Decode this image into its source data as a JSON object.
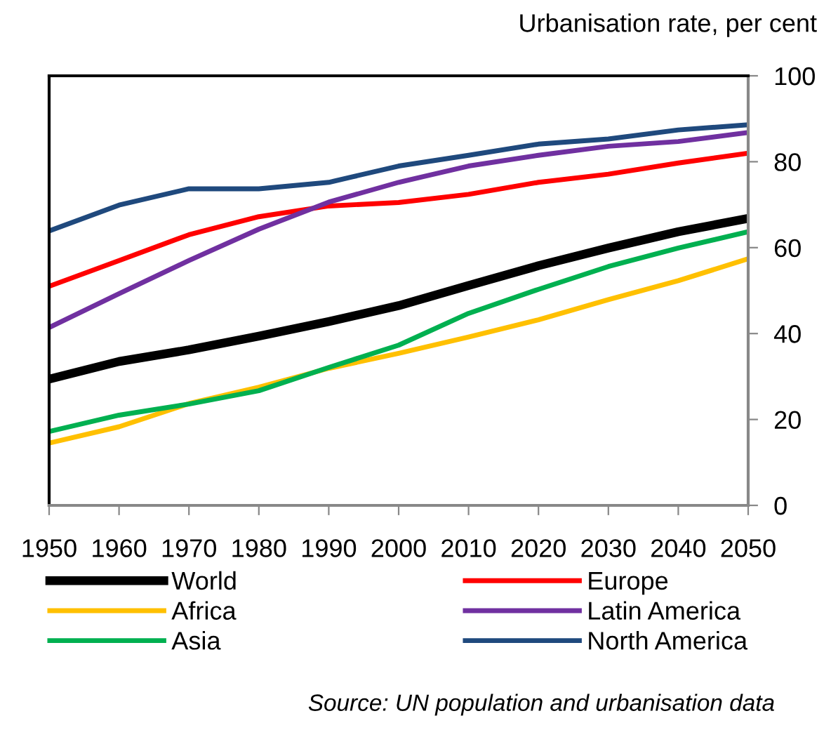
{
  "chart_data": {
    "type": "line",
    "ylabel": "Urbanisation rate, per cent",
    "x": [
      1950,
      1960,
      1970,
      1980,
      1990,
      2000,
      2010,
      2020,
      2030,
      2040,
      2050
    ],
    "xlim": [
      1950,
      2050
    ],
    "xticks": [
      1950,
      1960,
      1970,
      1980,
      1990,
      2000,
      2010,
      2020,
      2030,
      2040,
      2050
    ],
    "ylim": [
      0,
      100
    ],
    "yticks": [
      0,
      20,
      40,
      60,
      80,
      100
    ],
    "grid": false,
    "legend": "bottom",
    "marker": "none",
    "line_style": "solid",
    "series": [
      {
        "name": "World",
        "color": "#000000",
        "values": [
          29.4,
          33.5,
          36.2,
          39.4,
          42.8,
          46.5,
          51.2,
          55.8,
          59.9,
          63.7,
          66.8
        ]
      },
      {
        "name": "Africa",
        "color": "#ffc000",
        "values": [
          14.5,
          18.3,
          23.7,
          27.5,
          31.9,
          35.4,
          39.2,
          43.2,
          47.9,
          52.3,
          57.4
        ]
      },
      {
        "name": "Asia",
        "color": "#00b050",
        "values": [
          17.2,
          21.0,
          23.6,
          26.7,
          32.1,
          37.3,
          44.7,
          50.3,
          55.6,
          59.9,
          63.7
        ]
      },
      {
        "name": "Europe",
        "color": "#ff0000",
        "values": [
          51.0,
          57.0,
          63.0,
          67.2,
          69.7,
          70.5,
          72.4,
          75.2,
          77.1,
          79.7,
          82.0
        ]
      },
      {
        "name": "Latin America",
        "color": "#7030a0",
        "values": [
          41.4,
          49.3,
          57.0,
          64.3,
          70.6,
          75.2,
          79.0,
          81.5,
          83.6,
          84.7,
          86.8
        ]
      },
      {
        "name": "North America",
        "color": "#1f497d",
        "values": [
          63.9,
          69.9,
          73.7,
          73.7,
          75.2,
          79.0,
          81.5,
          84.1,
          85.3,
          87.4,
          88.6
        ]
      }
    ],
    "annotations": [
      "Source: UN population and urbanisation data"
    ]
  }
}
